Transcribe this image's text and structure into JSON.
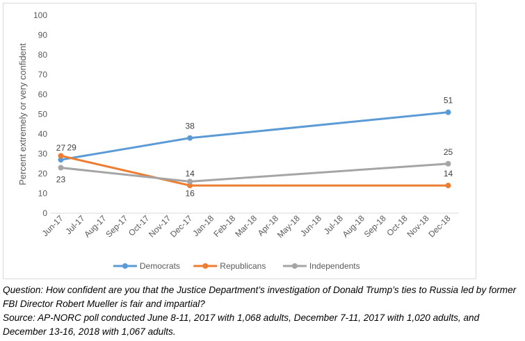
{
  "chart_data": {
    "type": "line",
    "title": "",
    "ylabel": "Percent extremely or very confident",
    "xlabel": "",
    "ylim": [
      0,
      100
    ],
    "yticks": [
      0,
      10,
      20,
      30,
      40,
      50,
      60,
      70,
      80,
      90,
      100
    ],
    "categories": [
      "Jun-17",
      "Jul-17",
      "Aug-17",
      "Sep-17",
      "Oct-17",
      "Nov-17",
      "Dec-17",
      "Jan-18",
      "Feb-18",
      "Mar-18",
      "Apr-18",
      "May-18",
      "Jun-18",
      "Jul-18",
      "Aug-18",
      "Sep-18",
      "Oct-18",
      "Nov-18",
      "Dec-18"
    ],
    "grid": false,
    "legend_position": "bottom",
    "series": [
      {
        "name": "Democrats",
        "color": "#5b9bd5",
        "points": [
          {
            "x": "Jun-17",
            "y": 27,
            "label": "27",
            "label_pos": "above"
          },
          {
            "x": "Dec-17",
            "y": 38,
            "label": "38",
            "label_pos": "above"
          },
          {
            "x": "Dec-18",
            "y": 51,
            "label": "51",
            "label_pos": "above"
          }
        ]
      },
      {
        "name": "Republicans",
        "color": "#ed7d31",
        "points": [
          {
            "x": "Jun-17",
            "y": 29,
            "label": "29",
            "label_pos": "right"
          },
          {
            "x": "Dec-17",
            "y": 14,
            "label": "14",
            "label_pos": "above"
          },
          {
            "x": "Dec-18",
            "y": 14,
            "label": "14",
            "label_pos": "above"
          }
        ]
      },
      {
        "name": "Independents",
        "color": "#a5a5a5",
        "points": [
          {
            "x": "Jun-17",
            "y": 23,
            "label": "23",
            "label_pos": "below"
          },
          {
            "x": "Dec-17",
            "y": 16,
            "label": "16",
            "label_pos": "below"
          },
          {
            "x": "Dec-18",
            "y": 25,
            "label": "25",
            "label_pos": "above"
          }
        ]
      }
    ]
  },
  "caption": {
    "question": "Question: How confident are you that the Justice Department’s investigation of Donald Trump’s ties to Russia led by former FBI Director Robert Mueller is fair and impartial?",
    "source": "Source: AP-NORC poll conducted June 8-11, 2017 with 1,068 adults, December 7-11, 2017 with 1,020 adults, and December 13-16, 2018 with 1,067 adults."
  }
}
